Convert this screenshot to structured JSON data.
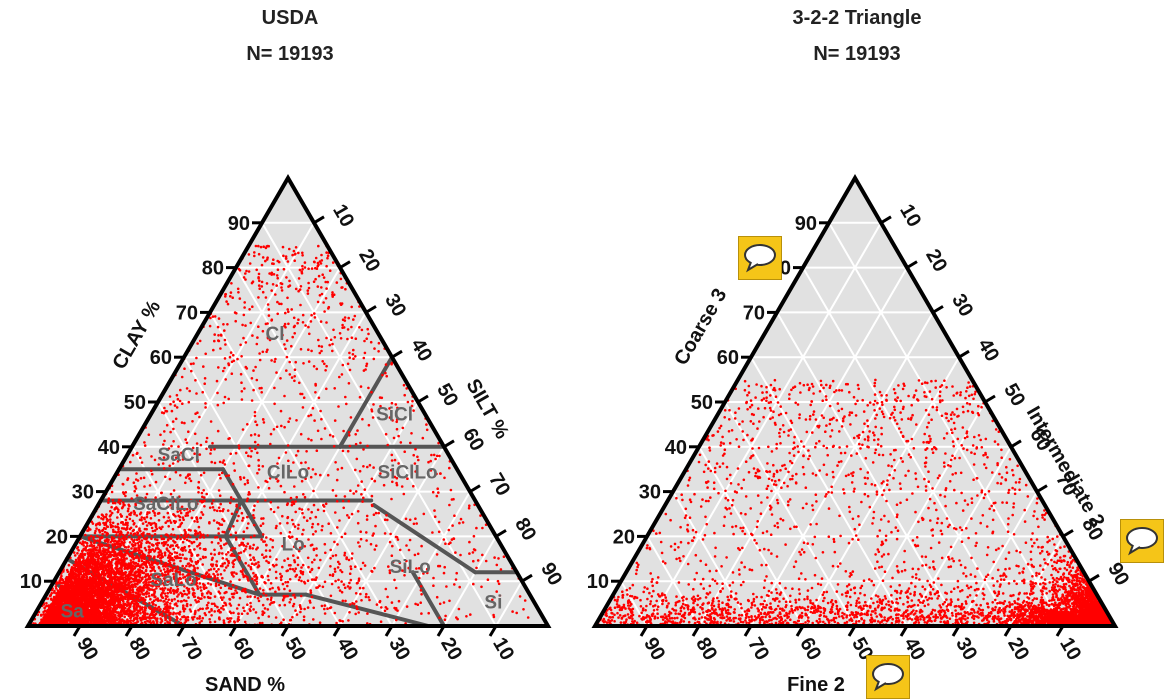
{
  "chart_data": [
    {
      "type": "scatter",
      "subtype": "ternary",
      "title": "USDA",
      "subtitle": "N= 19193",
      "axes": {
        "left": {
          "label": "CLAY %",
          "ticks": [
            "10",
            "20",
            "30",
            "40",
            "50",
            "60",
            "70",
            "80",
            "90"
          ]
        },
        "right": {
          "label": "SILT %",
          "ticks": [
            "10",
            "20",
            "30",
            "40",
            "50",
            "60",
            "70",
            "80",
            "90"
          ]
        },
        "bottom": {
          "label": "SAND %",
          "ticks": [
            "90",
            "80",
            "70",
            "60",
            "50",
            "40",
            "30",
            "20",
            "10"
          ]
        }
      },
      "ranges": {
        "clay": [
          0,
          100
        ],
        "silt": [
          0,
          100
        ],
        "sand": [
          0,
          100
        ]
      },
      "grid": true,
      "point_color": "#ff0000",
      "region_line_color": "#555555",
      "regions": [
        "Cl",
        "SiCl",
        "SaCl",
        "ClLo",
        "SiClLo",
        "SaClLo",
        "Lo",
        "SiLo",
        "SaLo",
        "Sa",
        "Si",
        "LoSa"
      ],
      "visible_region_labels": [
        "Cl",
        "SiCl",
        "SaCl",
        "ClLo",
        "SiClLo",
        "SaClLo",
        "Lo",
        "SiLo",
        "SaLo",
        "Sa",
        "Si"
      ],
      "n": 19193,
      "distribution_note": "dense at high sand / low clay"
    },
    {
      "type": "scatter",
      "subtype": "ternary",
      "title": "3-2-2 Triangle",
      "subtitle": "N= 19193",
      "axes": {
        "left": {
          "label": "Coarse 3",
          "ticks": [
            "10",
            "20",
            "30",
            "40",
            "50",
            "60",
            "70",
            "80",
            "90"
          ]
        },
        "right": {
          "label": "Intermediate 2",
          "ticks": [
            "10",
            "20",
            "30",
            "40",
            "50",
            "60",
            "70",
            "80",
            "90"
          ]
        },
        "bottom": {
          "label": "Fine 2",
          "ticks": [
            "90",
            "80",
            "70",
            "60",
            "50",
            "40",
            "30",
            "20",
            "10"
          ]
        }
      },
      "ranges": {
        "coarse": [
          0,
          100
        ],
        "intermediate": [
          0,
          100
        ],
        "fine": [
          0,
          100
        ]
      },
      "grid": true,
      "point_color": "#ff0000",
      "n": 19193,
      "distribution_note": "dense along intermediate edge"
    }
  ],
  "comment_icon": {
    "name": "comment-bubble-icon",
    "color": "#f5c518"
  }
}
